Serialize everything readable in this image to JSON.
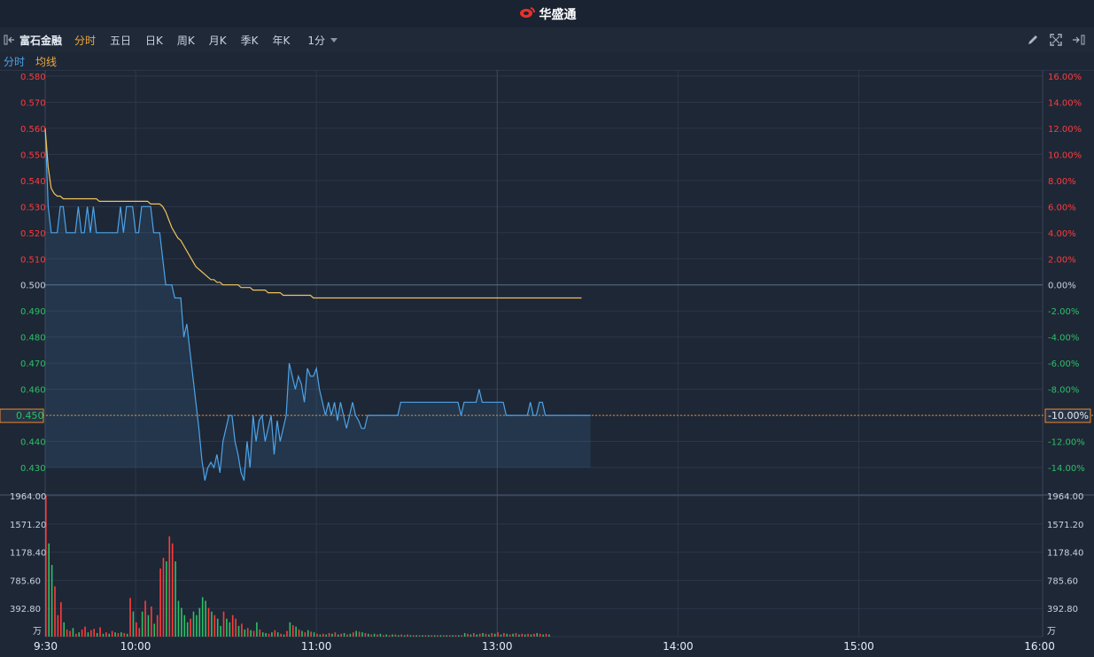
{
  "app": {
    "brand": "华盛通",
    "logo": "huasheng-logo-icon"
  },
  "toolbar": {
    "stock_name": "富石金融",
    "tabs": [
      "分时",
      "五日",
      "日K",
      "周K",
      "月K",
      "季K",
      "年K"
    ],
    "active_tab": "分时",
    "period": "1分",
    "icons": [
      "pencil-icon",
      "expand-icon",
      "sidebar-toggle-icon"
    ]
  },
  "legend": {
    "line": "分时",
    "avg": "均线"
  },
  "colors": {
    "up": "#ff3b3b",
    "down": "#2bc065",
    "price_line": "#4da3e8",
    "avg_line": "#f0c35a",
    "ref_line": "#f0892e"
  },
  "chart_data": {
    "type": "line",
    "x_axis_labels": [
      "9:30",
      "10:00",
      "11:00",
      "13:00",
      "14:00",
      "15:00",
      "16:00"
    ],
    "price_axis": [
      "0.580",
      "0.570",
      "0.560",
      "0.550",
      "0.540",
      "0.530",
      "0.520",
      "0.510",
      "0.500",
      "0.490",
      "0.480",
      "0.470",
      "0.460",
      "0.450",
      "0.440",
      "0.430"
    ],
    "pct_axis": [
      "16.00%",
      "14.00%",
      "12.00%",
      "10.00%",
      "8.00%",
      "6.00%",
      "4.00%",
      "2.00%",
      "0.00%",
      "-2.00%",
      "-4.00%",
      "-6.00%",
      "-8.00%",
      "-10.00%",
      "-12.00%",
      "-14.00%"
    ],
    "ylim": [
      0.425,
      0.58
    ],
    "prev_close": 0.5,
    "current_price": "0.450",
    "current_pct": "-10.00%",
    "volume_axis": [
      "1964.00",
      "1571.20",
      "1178.40",
      "785.60",
      "392.80"
    ],
    "volume_unit": "万",
    "volume_max": 1964,
    "series": [
      {
        "name": "分时",
        "values": [
          0.56,
          0.53,
          0.52,
          0.52,
          0.52,
          0.53,
          0.53,
          0.52,
          0.52,
          0.52,
          0.52,
          0.53,
          0.52,
          0.52,
          0.53,
          0.52,
          0.53,
          0.52,
          0.52,
          0.52,
          0.52,
          0.52,
          0.52,
          0.52,
          0.52,
          0.53,
          0.52,
          0.53,
          0.53,
          0.53,
          0.52,
          0.52,
          0.53,
          0.53,
          0.53,
          0.53,
          0.52,
          0.52,
          0.52,
          0.51,
          0.5,
          0.5,
          0.5,
          0.495,
          0.495,
          0.495,
          0.48,
          0.485,
          0.475,
          0.465,
          0.455,
          0.445,
          0.433,
          0.425,
          0.43,
          0.432,
          0.43,
          0.435,
          0.428,
          0.44,
          0.445,
          0.45,
          0.45,
          0.44,
          0.435,
          0.428,
          0.425,
          0.44,
          0.43,
          0.45,
          0.44,
          0.448,
          0.45,
          0.44,
          0.445,
          0.45,
          0.435,
          0.448,
          0.44,
          0.445,
          0.45,
          0.47,
          0.465,
          0.46,
          0.465,
          0.462,
          0.455,
          0.468,
          0.465,
          0.465,
          0.468,
          0.46,
          0.455,
          0.45,
          0.455,
          0.45,
          0.455,
          0.448,
          0.455,
          0.45,
          0.445,
          0.45,
          0.455,
          0.45,
          0.448,
          0.445,
          0.445,
          0.45,
          0.45,
          0.45,
          0.45,
          0.45,
          0.45,
          0.45,
          0.45,
          0.45,
          0.45,
          0.45,
          0.455,
          0.455,
          0.455,
          0.455,
          0.455,
          0.455,
          0.455,
          0.455,
          0.455,
          0.455,
          0.455,
          0.455,
          0.455,
          0.455,
          0.455,
          0.455,
          0.455,
          0.455,
          0.455,
          0.455,
          0.45,
          0.455,
          0.455,
          0.455,
          0.455,
          0.455,
          0.46,
          0.455,
          0.455,
          0.455,
          0.455,
          0.455,
          0.455,
          0.455,
          0.455,
          0.45,
          0.45,
          0.45,
          0.45,
          0.45,
          0.45,
          0.45,
          0.45,
          0.455,
          0.45,
          0.45,
          0.455,
          0.455,
          0.45,
          0.45,
          0.45,
          0.45,
          0.45,
          0.45,
          0.45,
          0.45,
          0.45,
          0.45,
          0.45,
          0.45,
          0.45,
          0.45,
          0.45,
          0.45
        ]
      },
      {
        "name": "均线",
        "values": [
          0.56,
          0.545,
          0.537,
          0.535,
          0.534,
          0.534,
          0.533,
          0.533,
          0.533,
          0.533,
          0.533,
          0.533,
          0.533,
          0.533,
          0.533,
          0.533,
          0.533,
          0.533,
          0.532,
          0.532,
          0.532,
          0.532,
          0.532,
          0.532,
          0.532,
          0.532,
          0.532,
          0.532,
          0.532,
          0.532,
          0.532,
          0.532,
          0.532,
          0.532,
          0.532,
          0.531,
          0.531,
          0.531,
          0.531,
          0.53,
          0.528,
          0.525,
          0.522,
          0.52,
          0.518,
          0.517,
          0.515,
          0.513,
          0.511,
          0.509,
          0.507,
          0.506,
          0.505,
          0.504,
          0.503,
          0.502,
          0.502,
          0.501,
          0.501,
          0.5,
          0.5,
          0.5,
          0.5,
          0.5,
          0.5,
          0.499,
          0.499,
          0.499,
          0.499,
          0.498,
          0.498,
          0.498,
          0.498,
          0.498,
          0.497,
          0.497,
          0.497,
          0.497,
          0.497,
          0.496,
          0.496,
          0.496,
          0.496,
          0.496,
          0.496,
          0.496,
          0.496,
          0.496,
          0.496,
          0.495,
          0.495,
          0.495,
          0.495,
          0.495,
          0.495,
          0.495,
          0.495,
          0.495,
          0.495,
          0.495,
          0.495,
          0.495,
          0.495,
          0.495,
          0.495,
          0.495,
          0.495,
          0.495,
          0.495,
          0.495,
          0.495,
          0.495,
          0.495,
          0.495,
          0.495,
          0.495,
          0.495,
          0.495,
          0.495,
          0.495,
          0.495,
          0.495,
          0.495,
          0.495,
          0.495,
          0.495,
          0.495,
          0.495,
          0.495,
          0.495,
          0.495,
          0.495,
          0.495,
          0.495,
          0.495,
          0.495,
          0.495,
          0.495,
          0.495,
          0.495,
          0.495,
          0.495,
          0.495,
          0.495,
          0.495,
          0.495,
          0.495,
          0.495,
          0.495,
          0.495,
          0.495,
          0.495,
          0.495,
          0.495,
          0.495,
          0.495,
          0.495,
          0.495,
          0.495,
          0.495,
          0.495,
          0.495,
          0.495,
          0.495,
          0.495,
          0.495,
          0.495,
          0.495,
          0.495,
          0.495,
          0.495,
          0.495,
          0.495,
          0.495,
          0.495,
          0.495,
          0.495,
          0.495,
          0.495
        ]
      }
    ],
    "volume": [
      1964,
      1300,
      1000,
      700,
      300,
      480,
      200,
      100,
      80,
      120,
      40,
      60,
      100,
      140,
      60,
      90,
      110,
      50,
      130,
      40,
      60,
      40,
      80,
      60,
      50,
      60,
      50,
      40,
      540,
      350,
      200,
      120,
      350,
      500,
      300,
      420,
      180,
      300,
      950,
      1100,
      1050,
      1400,
      1300,
      1050,
      500,
      400,
      300,
      200,
      250,
      350,
      300,
      400,
      550,
      500,
      400,
      350,
      300,
      250,
      150,
      350,
      250,
      200,
      300,
      250,
      150,
      180,
      100,
      120,
      90,
      80,
      200,
      100,
      60,
      50,
      40,
      60,
      90,
      60,
      40,
      30,
      80,
      200,
      160,
      140,
      100,
      80,
      60,
      90,
      70,
      60,
      40,
      30,
      40,
      30,
      50,
      40,
      60,
      30,
      40,
      50,
      30,
      40,
      60,
      80,
      70,
      60,
      50,
      40,
      30,
      40,
      30,
      40,
      20,
      30,
      20,
      30,
      30,
      20,
      30,
      20,
      30,
      20,
      20,
      20,
      20,
      20,
      20,
      20,
      20,
      20,
      20,
      20,
      20,
      20,
      20,
      20,
      20,
      20,
      20,
      50,
      40,
      30,
      50,
      30,
      40,
      50,
      40,
      30,
      50,
      40,
      60,
      30,
      50,
      40,
      30,
      40,
      50,
      30,
      40,
      30,
      40,
      30,
      40,
      50,
      40,
      30,
      40,
      30
    ],
    "volume_dir": [
      1,
      -1,
      -1,
      1,
      1,
      1,
      -1,
      1,
      1,
      -1,
      1,
      -1,
      1,
      1,
      -1,
      1,
      1,
      -1,
      1,
      -1,
      1,
      -1,
      1,
      -1,
      1,
      -1,
      1,
      -1,
      1,
      -1,
      1,
      1,
      -1,
      1,
      -1,
      1,
      -1,
      1,
      1,
      1,
      -1,
      1,
      1,
      -1,
      -1,
      -1,
      -1,
      -1,
      1,
      -1,
      -1,
      -1,
      -1,
      -1,
      1,
      -1,
      1,
      -1,
      -1,
      1,
      -1,
      -1,
      1,
      1,
      -1,
      1,
      -1,
      1,
      -1,
      1,
      -1,
      1,
      -1,
      -1,
      1,
      -1,
      1,
      -1,
      1,
      -1,
      1,
      -1,
      1,
      -1,
      1,
      -1,
      1,
      -1,
      1,
      -1,
      1,
      -1,
      1,
      -1,
      1,
      -1,
      1,
      -1,
      1,
      -1,
      1,
      -1,
      1,
      -1,
      1,
      -1,
      1,
      -1,
      1,
      -1,
      1,
      -1,
      1,
      -1,
      1,
      -1,
      1,
      -1,
      1,
      -1,
      1,
      -1,
      1,
      -1,
      1,
      -1,
      1,
      -1,
      1,
      -1,
      1,
      -1,
      1,
      -1,
      1,
      -1,
      1,
      -1,
      1,
      -1,
      1,
      -1,
      1,
      -1,
      1,
      -1,
      1,
      -1,
      1,
      -1,
      1,
      -1,
      1,
      -1,
      1,
      -1,
      1,
      -1,
      1,
      -1,
      1,
      -1,
      1,
      -1,
      1,
      -1,
      1,
      -1,
      1,
      -1,
      1
    ]
  }
}
